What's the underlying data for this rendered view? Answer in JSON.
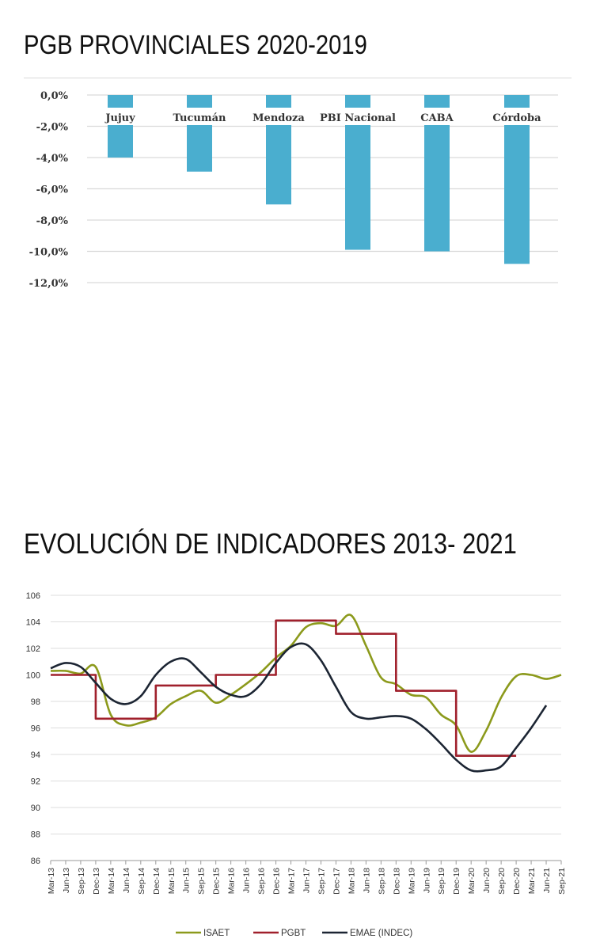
{
  "sections": [
    {
      "title": "PGB PROVINCIALES 2020-2019"
    },
    {
      "title": "EVOLUCIÓN DE INDICADORES 2013- 2021"
    }
  ],
  "chart_data": [
    {
      "type": "bar",
      "categories": [
        "Jujuy",
        "Tucumán",
        "Mendoza",
        "PBI Nacional",
        "CABA",
        "Córdoba"
      ],
      "values": [
        -4.0,
        -4.9,
        -7.0,
        -9.9,
        -10.0,
        -10.8
      ],
      "y_ticks": [
        "0,0%",
        "-2,0%",
        "-4,0%",
        "-6,0%",
        "-8,0%",
        "-10,0%",
        "-12,0%"
      ],
      "ylim": [
        -12,
        0
      ],
      "grid": true,
      "bar_color": "#4aaecf"
    },
    {
      "type": "line",
      "x_labels": [
        "Mar-13",
        "Jun-13",
        "Sep-13",
        "Dec-13",
        "Mar-14",
        "Jun-14",
        "Sep-14",
        "Dec-14",
        "Mar-15",
        "Jun-15",
        "Sep-15",
        "Dec-15",
        "Mar-16",
        "Jun-16",
        "Sep-16",
        "Dec-16",
        "Mar-17",
        "Jun-17",
        "Sep-17",
        "Dec-17",
        "Mar-18",
        "Jun-18",
        "Sep-18",
        "Dec-18",
        "Mar-19",
        "Jun-19",
        "Sep-19",
        "Dec-19",
        "Mar-20",
        "Jun-20",
        "Sep-20",
        "Dec-20",
        "Mar-21",
        "Jun-21",
        "Sep-21"
      ],
      "y_ticks": [
        "86",
        "88",
        "90",
        "92",
        "94",
        "96",
        "98",
        "100",
        "102",
        "104",
        "106"
      ],
      "ylim": [
        86,
        106
      ],
      "grid": true,
      "legend_position": "bottom",
      "series": [
        {
          "name": "ISAET",
          "color": "#8c9a1c",
          "values": [
            100.3,
            100.3,
            100.1,
            100.6,
            97.0,
            96.2,
            96.4,
            96.8,
            97.8,
            98.4,
            98.8,
            97.9,
            98.5,
            99.3,
            100.2,
            101.3,
            102.2,
            103.6,
            103.9,
            103.7,
            104.5,
            102.2,
            99.8,
            99.3,
            98.5,
            98.3,
            97.0,
            96.2,
            94.2,
            95.8,
            98.3,
            99.9,
            100.0,
            99.7,
            100.0
          ]
        },
        {
          "name": "PGBT",
          "color": "#a0202c",
          "values": [
            100.0,
            100.0,
            100.0,
            96.7,
            96.7,
            96.7,
            96.7,
            99.2,
            99.2,
            99.2,
            99.2,
            100.0,
            100.0,
            100.0,
            100.0,
            104.1,
            104.1,
            104.1,
            104.1,
            103.1,
            103.1,
            103.1,
            103.1,
            98.8,
            98.8,
            98.8,
            98.8,
            93.9,
            93.9,
            93.9,
            93.9,
            93.9
          ]
        },
        {
          "name": "EMAE (INDEC)",
          "color": "#1c2533",
          "values": [
            100.5,
            100.9,
            100.6,
            99.4,
            98.2,
            97.8,
            98.4,
            100.0,
            101.0,
            101.2,
            100.2,
            99.1,
            98.5,
            98.4,
            99.3,
            100.9,
            102.1,
            102.3,
            101.1,
            99.1,
            97.2,
            96.7,
            96.8,
            96.9,
            96.7,
            95.9,
            94.8,
            93.6,
            92.8,
            92.8,
            93.1,
            94.5,
            96.0,
            97.7
          ]
        }
      ]
    }
  ]
}
